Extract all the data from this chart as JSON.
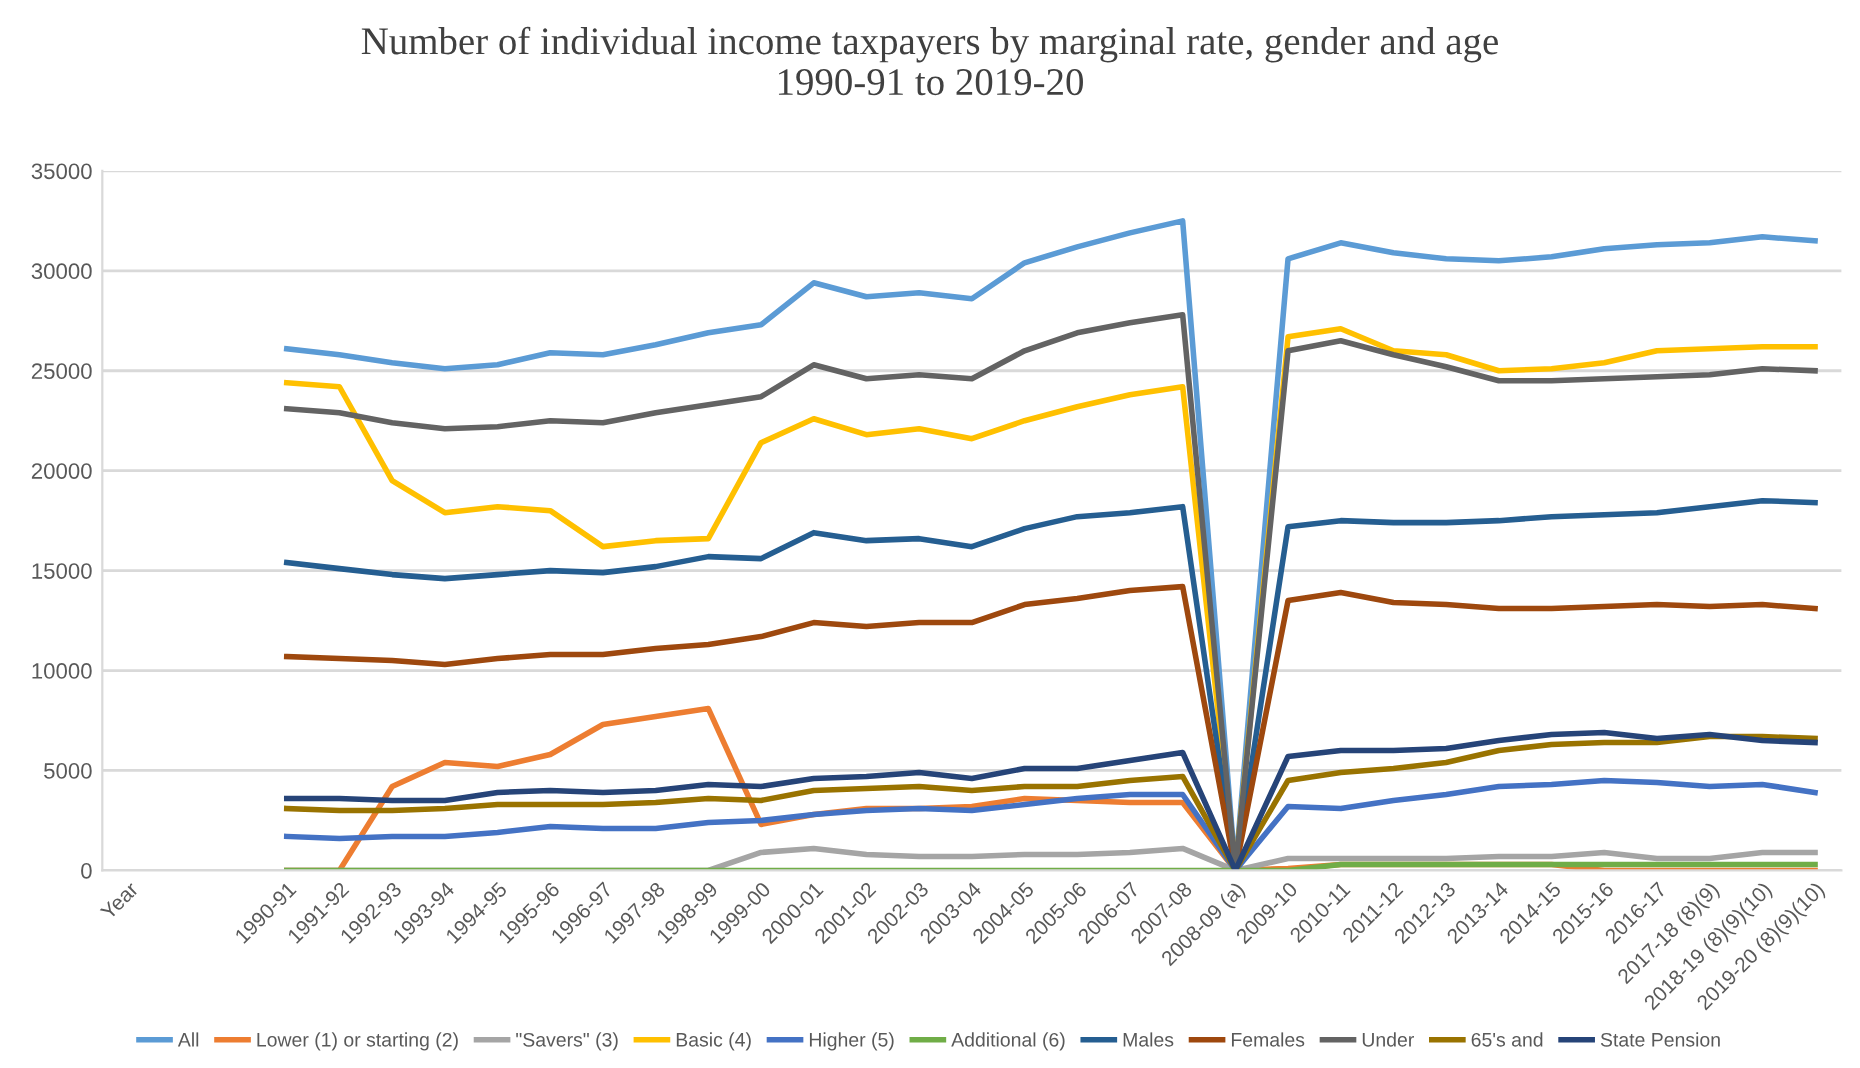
{
  "chart_data": {
    "type": "line",
    "title": "Number of individual income taxpayers by marginal rate, gender and age\n1990-91 to 2019-20",
    "categories": [
      "Year",
      null,
      null,
      "1990-91",
      "1991-92",
      "1992-93",
      "1993-94",
      "1994-95",
      "1995-96",
      "1996-97",
      "1997-98",
      "1998-99",
      "1999-00",
      "2000-01",
      "2001-02",
      "2002-03",
      "2003-04",
      "2004-05",
      "2005-06",
      "2006-07",
      "2007-08",
      "2008-09 (a)",
      "2009-10",
      "2010-11",
      "2011-12",
      "2012-13",
      "2013-14",
      "2014-15",
      "2015-16",
      "2016-17",
      "2017-18 (8)(9)",
      "2018-19 (8)(9)(10)",
      "2019-20 (8)(9)(10)"
    ],
    "series": [
      {
        "name": "All",
        "color": "#5b9bd5",
        "values": [
          null,
          null,
          null,
          26100,
          25800,
          25400,
          25100,
          25300,
          25900,
          25800,
          26300,
          26900,
          27300,
          29400,
          28700,
          28900,
          28600,
          30400,
          31200,
          31900,
          32500,
          0,
          30600,
          31400,
          30900,
          30600,
          30500,
          30700,
          31100,
          31300,
          31400,
          31700,
          31500
        ]
      },
      {
        "name": "Lower (1) or starting (2)",
        "color": "#ed7d31",
        "values": [
          null,
          null,
          null,
          0,
          0,
          4200,
          5400,
          5200,
          5800,
          7300,
          7700,
          8100,
          2300,
          2800,
          3100,
          3100,
          3200,
          3600,
          3500,
          3400,
          3400,
          0,
          100,
          300,
          300,
          300,
          300,
          300,
          0,
          0,
          0,
          0,
          0
        ]
      },
      {
        "name": "\"Savers\" (3)",
        "color": "#a5a5a5",
        "values": [
          null,
          null,
          null,
          0,
          0,
          0,
          0,
          0,
          0,
          0,
          0,
          0,
          900,
          1100,
          800,
          700,
          700,
          800,
          800,
          900,
          1100,
          0,
          600,
          600,
          600,
          600,
          700,
          700,
          900,
          600,
          600,
          900,
          900
        ]
      },
      {
        "name": "Basic (4)",
        "color": "#ffc000",
        "values": [
          null,
          null,
          null,
          24400,
          24200,
          19500,
          17900,
          18200,
          18000,
          16200,
          16500,
          16600,
          21400,
          22600,
          21800,
          22100,
          21600,
          22500,
          23200,
          23800,
          24200,
          0,
          26700,
          27100,
          26000,
          25800,
          25000,
          25100,
          25400,
          26000,
          26100,
          26200,
          26200
        ]
      },
      {
        "name": "Higher (5)",
        "color": "#4472c4",
        "values": [
          null,
          null,
          null,
          1700,
          1600,
          1700,
          1700,
          1900,
          2200,
          2100,
          2100,
          2400,
          2500,
          2800,
          3000,
          3100,
          3000,
          3300,
          3600,
          3800,
          3800,
          0,
          3200,
          3100,
          3500,
          3800,
          4200,
          4300,
          4500,
          4400,
          4200,
          4300,
          3900
        ]
      },
      {
        "name": "Additional (6)",
        "color": "#70ad47",
        "values": [
          null,
          null,
          null,
          0,
          0,
          0,
          0,
          0,
          0,
          0,
          0,
          0,
          0,
          0,
          0,
          0,
          0,
          0,
          0,
          0,
          0,
          0,
          0,
          300,
          300,
          300,
          300,
          300,
          300,
          300,
          300,
          300,
          300
        ]
      },
      {
        "name": "Males",
        "color": "#255e91",
        "values": [
          null,
          null,
          null,
          15400,
          15100,
          14800,
          14600,
          14800,
          15000,
          14900,
          15200,
          15700,
          15600,
          16900,
          16500,
          16600,
          16200,
          17100,
          17700,
          17900,
          18200,
          0,
          17200,
          17500,
          17400,
          17400,
          17500,
          17700,
          17800,
          17900,
          18200,
          18500,
          18400
        ]
      },
      {
        "name": "Females",
        "color": "#9e480e",
        "values": [
          null,
          null,
          null,
          10700,
          10600,
          10500,
          10300,
          10600,
          10800,
          10800,
          11100,
          11300,
          11700,
          12400,
          12200,
          12400,
          12400,
          13300,
          13600,
          14000,
          14200,
          0,
          13500,
          13900,
          13400,
          13300,
          13100,
          13100,
          13200,
          13300,
          13200,
          13300,
          13100
        ]
      },
      {
        "name": "Under",
        "color": "#636363",
        "values": [
          null,
          null,
          null,
          23100,
          22900,
          22400,
          22100,
          22200,
          22500,
          22400,
          22900,
          23300,
          23700,
          25300,
          24600,
          24800,
          24600,
          26000,
          26900,
          27400,
          27800,
          0,
          26000,
          26500,
          25800,
          25200,
          24500,
          24500,
          24600,
          24700,
          24800,
          25100,
          25000
        ]
      },
      {
        "name": "65's and",
        "color": "#997300",
        "values": [
          null,
          null,
          null,
          3100,
          3000,
          3000,
          3100,
          3300,
          3300,
          3300,
          3400,
          3600,
          3500,
          4000,
          4100,
          4200,
          4000,
          4200,
          4200,
          4500,
          4700,
          0,
          4500,
          4900,
          5100,
          5400,
          6000,
          6300,
          6400,
          6400,
          6700,
          6700,
          6600
        ]
      },
      {
        "name": "State Pension",
        "color": "#264478",
        "values": [
          null,
          null,
          null,
          3600,
          3600,
          3500,
          3500,
          3900,
          4000,
          3900,
          4000,
          4300,
          4200,
          4600,
          4700,
          4900,
          4600,
          5100,
          5100,
          5500,
          5900,
          0,
          5700,
          6000,
          6000,
          6100,
          6500,
          6800,
          6900,
          6600,
          6800,
          6500,
          6400
        ]
      }
    ],
    "ylim": [
      0,
      35000
    ],
    "yticks": [
      0,
      5000,
      10000,
      15000,
      20000,
      25000,
      30000,
      35000
    ],
    "grid": "y",
    "legend": "bottom",
    "marker": "none",
    "line_style": "solid"
  }
}
